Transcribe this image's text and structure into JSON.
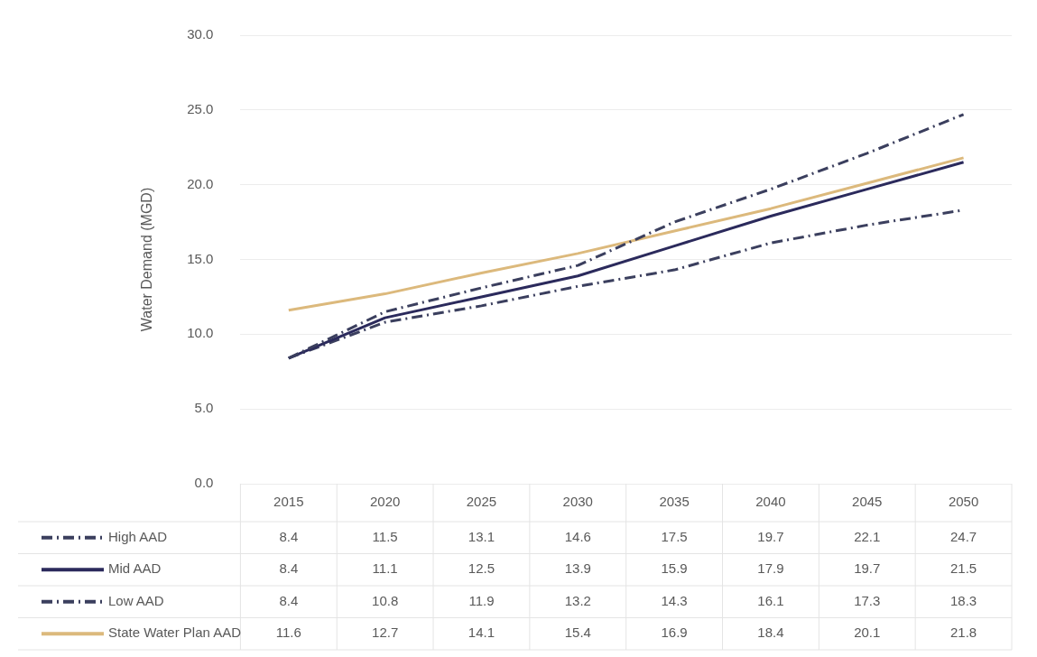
{
  "chart_data": {
    "type": "line",
    "ylabel": "Water Demand (MGD)",
    "categories": [
      "2015",
      "2020",
      "2025",
      "2030",
      "2035",
      "2040",
      "2045",
      "2050"
    ],
    "series": [
      {
        "name": "High AAD",
        "color": "#3b3f5e",
        "line_style": "dashdot",
        "values": [
          8.4,
          11.5,
          13.1,
          14.6,
          17.5,
          19.7,
          22.1,
          24.7
        ]
      },
      {
        "name": "Mid AAD",
        "color": "#2b2a5c",
        "line_style": "solid",
        "values": [
          8.4,
          11.1,
          12.5,
          13.9,
          15.9,
          17.9,
          19.7,
          21.5
        ]
      },
      {
        "name": "Low AAD",
        "color": "#3b3f5e",
        "line_style": "dashdot",
        "values": [
          8.4,
          10.8,
          11.9,
          13.2,
          14.3,
          16.1,
          17.3,
          18.3
        ]
      },
      {
        "name": "State Water Plan AAD",
        "color": "#dcb97c",
        "line_style": "solid",
        "values": [
          11.6,
          12.7,
          14.1,
          15.4,
          16.9,
          18.4,
          20.1,
          21.8
        ]
      }
    ],
    "ylim": [
      0,
      30
    ],
    "yticks": [
      {
        "value": 0,
        "label": "0.0"
      },
      {
        "value": 5,
        "label": "5.0"
      },
      {
        "value": 10,
        "label": "10.0"
      },
      {
        "value": 15,
        "label": "15.0"
      },
      {
        "value": 20,
        "label": "20.0"
      },
      {
        "value": 25,
        "label": "25.0"
      },
      {
        "value": 30,
        "label": "30.0"
      }
    ],
    "grid": "y",
    "legend": "bottom left",
    "data_labels": true,
    "marker": "none"
  }
}
